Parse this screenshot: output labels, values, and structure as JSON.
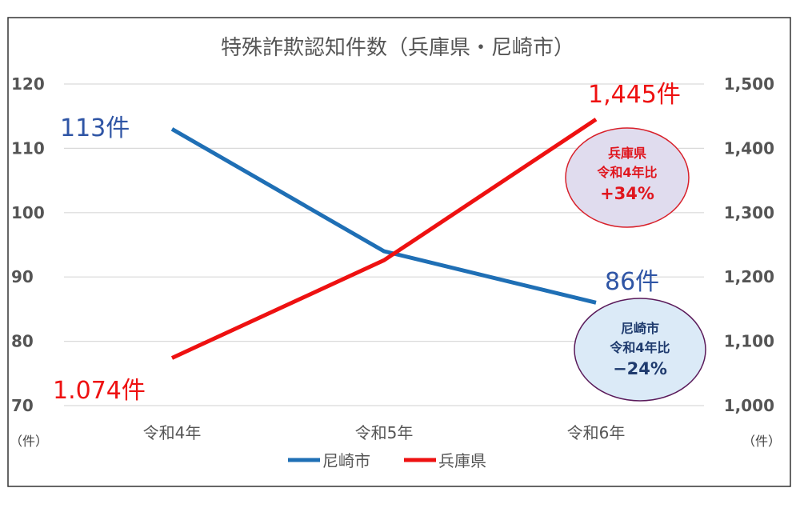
{
  "chart_data": {
    "type": "line",
    "title": "特殊詐欺認知件数（兵庫県・尼崎市）",
    "categories": [
      "令和4年",
      "令和5年",
      "令和6年"
    ],
    "y_left": {
      "min": 70,
      "max": 120,
      "step": 10,
      "ticks": [
        "70",
        "80",
        "90",
        "100",
        "110",
        "120"
      ],
      "unit": "（件）"
    },
    "y_right": {
      "min": 1000,
      "max": 1500,
      "step": 100,
      "ticks": [
        "1,000",
        "1,100",
        "1,200",
        "1,300",
        "1,400",
        "1,500"
      ],
      "unit": "（件）"
    },
    "series": [
      {
        "name": "尼崎市",
        "axis": "left",
        "color": "#1f6fb5",
        "values": [
          113,
          94,
          86
        ]
      },
      {
        "name": "兵庫県",
        "axis": "right",
        "color": "#ee1111",
        "values": [
          1074,
          1226,
          1445
        ]
      }
    ],
    "annotations": {
      "amagasaki_start": "113件",
      "amagasaki_end": "86件",
      "hyogo_start": "1.074件",
      "hyogo_end": "1,445件",
      "hyogo_bubble": [
        "兵庫県",
        "令和4年比",
        "+34%"
      ],
      "amagasaki_bubble": [
        "尼崎市",
        "令和4年比",
        "−24%"
      ]
    },
    "grid": true,
    "legend": "bottom"
  }
}
